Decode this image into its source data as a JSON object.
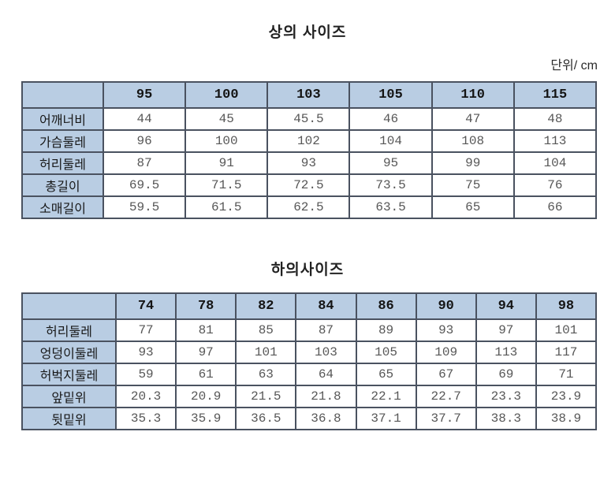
{
  "page": {
    "unit_label": "단위/ cm"
  },
  "colors": {
    "header_bg": "#b9cde3",
    "border": "#4a5260",
    "header_text": "#141414",
    "value_text": "#575757",
    "title_text": "#222222"
  },
  "tables": [
    {
      "title": "상의 사이즈",
      "columns": [
        "95",
        "100",
        "103",
        "105",
        "110",
        "115"
      ],
      "rows": [
        {
          "label": "어깨너비",
          "values": [
            "44",
            "45",
            "45.5",
            "46",
            "47",
            "48"
          ]
        },
        {
          "label": "가슴둘레",
          "values": [
            "96",
            "100",
            "102",
            "104",
            "108",
            "113"
          ]
        },
        {
          "label": "허리둘레",
          "values": [
            "87",
            "91",
            "93",
            "95",
            "99",
            "104"
          ]
        },
        {
          "label": "총길이",
          "values": [
            "69.5",
            "71.5",
            "72.5",
            "73.5",
            "75",
            "76"
          ]
        },
        {
          "label": "소매길이",
          "values": [
            "59.5",
            "61.5",
            "62.5",
            "63.5",
            "65",
            "66"
          ]
        }
      ]
    },
    {
      "title": "하의사이즈",
      "columns": [
        "74",
        "78",
        "82",
        "84",
        "86",
        "90",
        "94",
        "98"
      ],
      "rows": [
        {
          "label": "허리둘레",
          "values": [
            "77",
            "81",
            "85",
            "87",
            "89",
            "93",
            "97",
            "101"
          ]
        },
        {
          "label": "엉덩이둘레",
          "values": [
            "93",
            "97",
            "101",
            "103",
            "105",
            "109",
            "113",
            "117"
          ]
        },
        {
          "label": "허벅지둘레",
          "values": [
            "59",
            "61",
            "63",
            "64",
            "65",
            "67",
            "69",
            "71"
          ]
        },
        {
          "label": "앞밑위",
          "values": [
            "20.3",
            "20.9",
            "21.5",
            "21.8",
            "22.1",
            "22.7",
            "23.3",
            "23.9"
          ]
        },
        {
          "label": "뒷밑위",
          "values": [
            "35.3",
            "35.9",
            "36.5",
            "36.8",
            "37.1",
            "37.7",
            "38.3",
            "38.9"
          ]
        }
      ]
    }
  ]
}
